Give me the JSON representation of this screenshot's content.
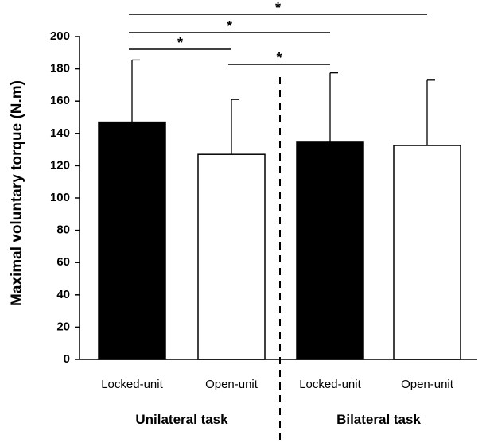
{
  "chart_data": {
    "type": "bar",
    "title": "",
    "xlabel": "",
    "ylabel": "Maximal voluntary torque (N.m)",
    "ylim": [
      0,
      200
    ],
    "yticks": [
      0,
      20,
      40,
      60,
      80,
      100,
      120,
      140,
      160,
      180,
      200
    ],
    "categories": [
      "Locked-unit",
      "Open-unit",
      "Locked-unit",
      "Open-unit"
    ],
    "groups": [
      {
        "label": "Unilateral task",
        "categories": [
          0,
          1
        ]
      },
      {
        "label": "Bilateral task",
        "categories": [
          2,
          3
        ]
      }
    ],
    "values": [
      147,
      127,
      135,
      132.5
    ],
    "error_upper": [
      185.5,
      161,
      177.5,
      173
    ],
    "bar_fill": [
      "#000000",
      "#ffffff",
      "#000000",
      "#ffffff"
    ],
    "significance": [
      {
        "from": 0,
        "to": 1,
        "label": "*",
        "level": 1
      },
      {
        "from": 1,
        "to": 2,
        "label": "*",
        "level": 0
      },
      {
        "from": 0,
        "to": 2,
        "label": "*",
        "level": 2
      },
      {
        "from": 0,
        "to": 3,
        "label": "*",
        "level": 3
      }
    ],
    "grid": false,
    "legend": "none",
    "divider": "dashed line between task groups"
  }
}
